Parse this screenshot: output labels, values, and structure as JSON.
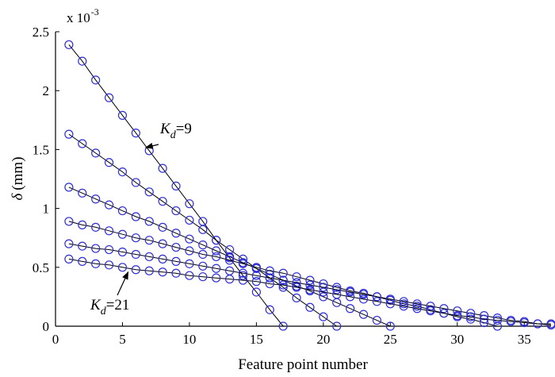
{
  "chart_data": {
    "type": "line",
    "title": "",
    "xlabel": "Feature point number",
    "ylabel_symbol": "δ",
    "ylabel_unit": "(mm)",
    "multiplier_base": "x 10",
    "multiplier_exp": "-3",
    "xlim": [
      0,
      37
    ],
    "ylim": [
      0,
      2.5
    ],
    "xticks": [
      0,
      5,
      10,
      15,
      20,
      25,
      30,
      35
    ],
    "yticks": [
      0,
      0.5,
      1,
      1.5,
      2,
      2.5
    ],
    "ytick_labels": [
      "0",
      "0.5",
      "1",
      "1.5",
      "2",
      "2.5"
    ],
    "grid": false,
    "legend": "none",
    "colors": {
      "marker": "#2f2fd6",
      "line": "#000000",
      "axis": "#000000"
    },
    "marker": "open-circle",
    "series": [
      {
        "x": [
          1,
          2,
          3,
          4,
          5,
          6,
          7,
          8,
          9,
          10,
          11,
          12,
          13,
          14,
          15,
          16,
          17
        ],
        "y": [
          2.39,
          2.25,
          2.09,
          1.94,
          1.79,
          1.64,
          1.49,
          1.34,
          1.19,
          1.04,
          0.89,
          0.73,
          0.58,
          0.43,
          0.29,
          0.14,
          0.0
        ]
      },
      {
        "x": [
          1,
          2,
          3,
          4,
          5,
          6,
          7,
          8,
          9,
          10,
          11,
          12,
          13,
          14,
          15,
          16,
          17,
          18,
          19,
          20,
          21
        ],
        "y": [
          1.63,
          1.55,
          1.47,
          1.39,
          1.31,
          1.22,
          1.14,
          1.06,
          0.98,
          0.9,
          0.82,
          0.73,
          0.65,
          0.57,
          0.49,
          0.41,
          0.33,
          0.24,
          0.16,
          0.08,
          0.0
        ]
      },
      {
        "x": [
          1,
          2,
          3,
          4,
          5,
          6,
          7,
          8,
          9,
          10,
          11,
          12,
          13,
          14,
          15,
          16,
          17,
          18,
          19,
          20,
          21,
          22,
          23,
          24,
          25
        ],
        "y": [
          1.18,
          1.13,
          1.08,
          1.03,
          0.98,
          0.93,
          0.89,
          0.84,
          0.79,
          0.74,
          0.69,
          0.64,
          0.59,
          0.54,
          0.49,
          0.44,
          0.39,
          0.34,
          0.3,
          0.25,
          0.2,
          0.15,
          0.1,
          0.05,
          0.0
        ]
      },
      {
        "x": [
          1,
          2,
          3,
          4,
          5,
          6,
          7,
          8,
          9,
          10,
          11,
          12,
          13,
          14,
          15,
          16,
          17,
          18,
          19,
          20,
          21,
          22,
          23,
          24,
          25,
          26,
          27,
          28,
          29,
          30,
          31,
          32,
          33
        ],
        "y": [
          0.89,
          0.86,
          0.84,
          0.81,
          0.78,
          0.75,
          0.73,
          0.7,
          0.67,
          0.64,
          0.61,
          0.59,
          0.56,
          0.53,
          0.5,
          0.47,
          0.45,
          0.42,
          0.39,
          0.36,
          0.33,
          0.3,
          0.28,
          0.25,
          0.22,
          0.19,
          0.17,
          0.14,
          0.11,
          0.08,
          0.06,
          0.03,
          0.0
        ]
      },
      {
        "x": [
          1,
          2,
          3,
          4,
          5,
          6,
          7,
          8,
          9,
          10,
          11,
          12,
          13,
          14,
          15,
          16,
          17,
          18,
          19,
          20,
          21,
          22,
          23,
          24,
          25,
          26,
          27,
          28,
          29,
          30,
          31,
          32,
          33,
          34,
          35,
          36,
          37
        ],
        "y": [
          0.7,
          0.68,
          0.66,
          0.65,
          0.63,
          0.61,
          0.59,
          0.57,
          0.55,
          0.53,
          0.51,
          0.49,
          0.47,
          0.45,
          0.43,
          0.41,
          0.39,
          0.37,
          0.35,
          0.33,
          0.31,
          0.29,
          0.27,
          0.25,
          0.23,
          0.21,
          0.19,
          0.17,
          0.15,
          0.13,
          0.11,
          0.09,
          0.07,
          0.05,
          0.04,
          0.02,
          0.01
        ]
      },
      {
        "x": [
          1,
          2,
          3,
          4,
          5,
          6,
          7,
          8,
          9,
          10,
          11,
          12,
          13,
          14,
          15,
          16,
          17,
          18,
          19,
          20,
          21,
          22,
          23,
          24,
          25,
          26,
          27,
          28,
          29,
          30,
          31,
          32,
          33,
          34,
          35,
          36,
          37
        ],
        "y": [
          0.57,
          0.55,
          0.53,
          0.52,
          0.5,
          0.48,
          0.47,
          0.46,
          0.45,
          0.43,
          0.42,
          0.41,
          0.4,
          0.39,
          0.38,
          0.36,
          0.35,
          0.33,
          0.31,
          0.29,
          0.27,
          0.25,
          0.23,
          0.21,
          0.19,
          0.17,
          0.15,
          0.13,
          0.11,
          0.09,
          0.08,
          0.06,
          0.05,
          0.04,
          0.03,
          0.02,
          0.02
        ]
      }
    ],
    "annotations": [
      {
        "sym": "K",
        "sub": "d",
        "rest": "=9",
        "arrow_to": [
          6.5,
          1.49
        ]
      },
      {
        "sym": "K",
        "sub": "d",
        "rest": "=21",
        "arrow_to": [
          5.6,
          0.5
        ]
      }
    ]
  }
}
